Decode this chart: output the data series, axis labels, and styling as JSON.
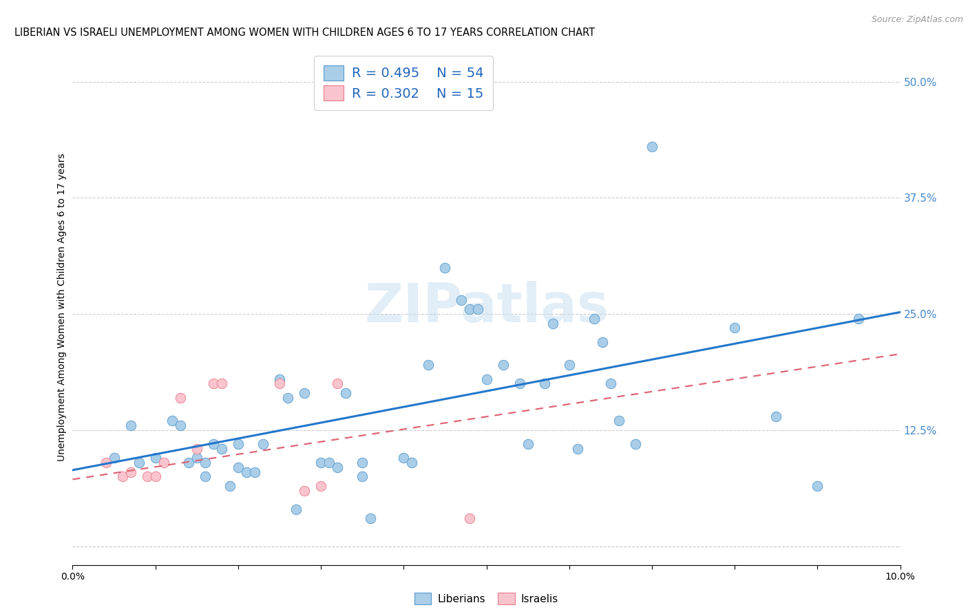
{
  "title": "LIBERIAN VS ISRAELI UNEMPLOYMENT AMONG WOMEN WITH CHILDREN AGES 6 TO 17 YEARS CORRELATION CHART",
  "source": "Source: ZipAtlas.com",
  "ylabel": "Unemployment Among Women with Children Ages 6 to 17 years",
  "xlim": [
    0.0,
    0.1
  ],
  "ylim": [
    -0.02,
    0.535
  ],
  "yticks": [
    0.0,
    0.125,
    0.25,
    0.375,
    0.5
  ],
  "ytick_labels": [
    "",
    "12.5%",
    "25.0%",
    "37.5%",
    "50.0%"
  ],
  "watermark": "ZIPatlas",
  "legend_blue_r": "R = 0.495",
  "legend_blue_n": "N = 54",
  "legend_pink_r": "R = 0.302",
  "legend_pink_n": "N = 15",
  "blue_color": "#aacde8",
  "pink_color": "#f9c4ce",
  "blue_edge_color": "#5599cc",
  "pink_edge_color": "#e87a8a",
  "blue_line_color": "#2277cc",
  "pink_line_color": "#dd6677",
  "blue_scatter": [
    [
      0.005,
      0.095
    ],
    [
      0.007,
      0.13
    ],
    [
      0.008,
      0.09
    ],
    [
      0.01,
      0.095
    ],
    [
      0.012,
      0.135
    ],
    [
      0.013,
      0.13
    ],
    [
      0.014,
      0.09
    ],
    [
      0.015,
      0.095
    ],
    [
      0.016,
      0.075
    ],
    [
      0.016,
      0.09
    ],
    [
      0.017,
      0.11
    ],
    [
      0.018,
      0.105
    ],
    [
      0.019,
      0.065
    ],
    [
      0.02,
      0.085
    ],
    [
      0.02,
      0.11
    ],
    [
      0.021,
      0.08
    ],
    [
      0.022,
      0.08
    ],
    [
      0.023,
      0.11
    ],
    [
      0.025,
      0.18
    ],
    [
      0.026,
      0.16
    ],
    [
      0.027,
      0.04
    ],
    [
      0.028,
      0.165
    ],
    [
      0.03,
      0.09
    ],
    [
      0.031,
      0.09
    ],
    [
      0.032,
      0.085
    ],
    [
      0.033,
      0.165
    ],
    [
      0.035,
      0.09
    ],
    [
      0.035,
      0.075
    ],
    [
      0.036,
      0.03
    ],
    [
      0.04,
      0.095
    ],
    [
      0.041,
      0.09
    ],
    [
      0.043,
      0.195
    ],
    [
      0.045,
      0.3
    ],
    [
      0.047,
      0.265
    ],
    [
      0.048,
      0.255
    ],
    [
      0.049,
      0.255
    ],
    [
      0.05,
      0.18
    ],
    [
      0.052,
      0.195
    ],
    [
      0.054,
      0.175
    ],
    [
      0.055,
      0.11
    ],
    [
      0.057,
      0.175
    ],
    [
      0.058,
      0.24
    ],
    [
      0.06,
      0.195
    ],
    [
      0.061,
      0.105
    ],
    [
      0.063,
      0.245
    ],
    [
      0.064,
      0.22
    ],
    [
      0.065,
      0.175
    ],
    [
      0.066,
      0.135
    ],
    [
      0.068,
      0.11
    ],
    [
      0.07,
      0.43
    ],
    [
      0.08,
      0.235
    ],
    [
      0.085,
      0.14
    ],
    [
      0.09,
      0.065
    ],
    [
      0.095,
      0.245
    ]
  ],
  "pink_scatter": [
    [
      0.004,
      0.09
    ],
    [
      0.006,
      0.075
    ],
    [
      0.007,
      0.08
    ],
    [
      0.009,
      0.075
    ],
    [
      0.01,
      0.075
    ],
    [
      0.011,
      0.09
    ],
    [
      0.013,
      0.16
    ],
    [
      0.015,
      0.105
    ],
    [
      0.017,
      0.175
    ],
    [
      0.018,
      0.175
    ],
    [
      0.025,
      0.175
    ],
    [
      0.028,
      0.06
    ],
    [
      0.03,
      0.065
    ],
    [
      0.032,
      0.175
    ],
    [
      0.048,
      0.03
    ]
  ],
  "blue_trend_x": [
    0.0,
    0.1
  ],
  "blue_trend_y": [
    0.082,
    0.252
  ],
  "pink_trend_x": [
    0.0,
    0.1
  ],
  "pink_trend_y": [
    0.072,
    0.207
  ],
  "background_color": "#ffffff",
  "grid_color": "#cccccc"
}
